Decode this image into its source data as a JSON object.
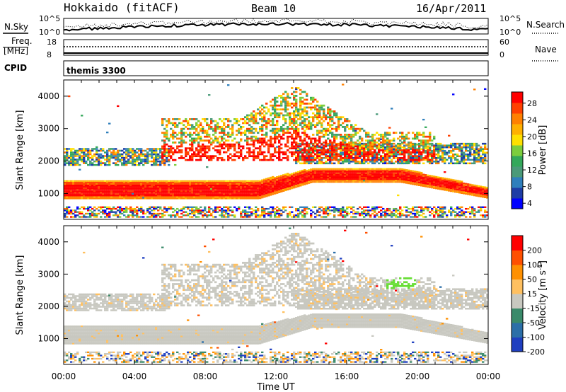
{
  "header": {
    "site": "Hokkaido (fitACF)",
    "beam": "Beam 10",
    "date": "16/Apr/2011"
  },
  "noise_panel": {
    "left_label": "N.Sky",
    "right_label": "N.Search",
    "ticks": [
      "10^5",
      "10^0"
    ]
  },
  "freq_panel": {
    "left_label_1": "Freq.",
    "left_label_2": "[MHz]",
    "left_ticks": [
      "18",
      "8"
    ],
    "right_label": "Nave",
    "right_ticks": [
      "60",
      "0"
    ]
  },
  "cpid": {
    "label": "CPID",
    "value": "themis 3300"
  },
  "chart_data": [
    {
      "type": "heatmap",
      "quantity": "power",
      "ylabel": "Slant Range [km]",
      "ylim": [
        200,
        4500
      ],
      "yticks": [
        "1000",
        "2000",
        "3000",
        "4000"
      ],
      "xlim": [
        0,
        24
      ],
      "colorbar": {
        "label": "Power [dB]",
        "ticks": [
          "28",
          "24",
          "20",
          "16",
          "12",
          "8",
          "4"
        ],
        "colors": [
          "#0000ff",
          "#1e3da6",
          "#2f7fbc",
          "#4a9a79",
          "#33a85a",
          "#7ccd3d",
          "#ffe000",
          "#ffb000",
          "#ff8000",
          "#ff4000",
          "#ff0000"
        ]
      }
    },
    {
      "type": "heatmap",
      "quantity": "velocity",
      "ylabel": "Slant Range [km]",
      "ylim": [
        200,
        4500
      ],
      "yticks": [
        "1000",
        "2000",
        "3000",
        "4000"
      ],
      "xlim": [
        0,
        24
      ],
      "xticks": [
        "00:00",
        "04:00",
        "08:00",
        "12:00",
        "16:00",
        "20:00",
        "00:00"
      ],
      "xlabel": "Time UT",
      "colorbar": {
        "label": "Velocity [m s",
        "label_sup": "-1",
        "label_end": "]",
        "ticks": [
          "200",
          "100",
          "50",
          "15",
          "-15",
          "-50",
          "-100",
          "-200"
        ],
        "colors": [
          "#1f3fc0",
          "#2c6fa8",
          "#3a8a6a",
          "#c8c8c0",
          "#ffc060",
          "#ff9000",
          "#ff5000",
          "#ff0000"
        ]
      }
    }
  ]
}
